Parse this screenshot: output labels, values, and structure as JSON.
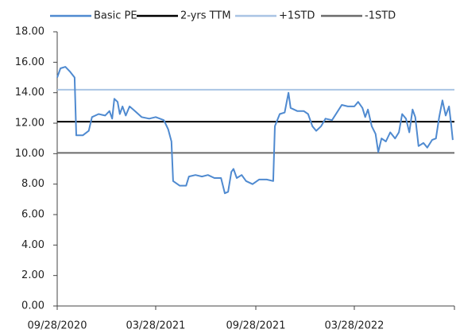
{
  "chart_data": {
    "type": "line",
    "legend": "top",
    "ylim": [
      0,
      18
    ],
    "yticks": [
      {
        "value": 0,
        "label": "0.00"
      },
      {
        "value": 2,
        "label": "2.00"
      },
      {
        "value": 4,
        "label": "4.00"
      },
      {
        "value": 6,
        "label": "6.00"
      },
      {
        "value": 8,
        "label": "8.00"
      },
      {
        "value": 10,
        "label": "10.00"
      },
      {
        "value": 12,
        "label": "12.00"
      },
      {
        "value": 14,
        "label": "14.00"
      },
      {
        "value": 16,
        "label": "16.00"
      },
      {
        "value": 18,
        "label": "18.00"
      }
    ],
    "xlim": [
      "09/28/2020",
      "09/28/2022"
    ],
    "xticks": [
      "09/28/2020",
      "03/28/2021",
      "09/28/2021",
      "03/28/2022"
    ],
    "x": [
      "09/28/2020",
      "10/04/2020",
      "10/13/2020",
      "10/21/2020",
      "10/30/2020",
      "11/02/2020",
      "11/14/2020",
      "11/25/2020",
      "12/01/2020",
      "12/13/2020",
      "12/25/2020",
      "01/02/2021",
      "01/07/2021",
      "01/11/2021",
      "01/17/2021",
      "01/21/2021",
      "01/26/2021",
      "02/01/2021",
      "02/08/2021",
      "02/18/2021",
      "03/02/2021",
      "03/16/2021",
      "03/28/2021",
      "04/12/2021",
      "04/20/2021",
      "04/26/2021",
      "04/29/2021",
      "05/11/2021",
      "05/23/2021",
      "05/28/2021",
      "06/09/2021",
      "06/21/2021",
      "07/02/2021",
      "07/14/2021",
      "07/26/2021",
      "08/02/2021",
      "08/08/2021",
      "08/14/2021",
      "08/18/2021",
      "08/24/2021",
      "09/02/2021",
      "09/10/2021",
      "09/22/2021",
      "10/04/2021",
      "10/18/2021",
      "10/30/2021",
      "11/02/2021",
      "11/11/2021",
      "11/20/2021",
      "11/27/2021",
      "12/01/2021",
      "12/13/2021",
      "12/25/2021",
      "01/02/2022",
      "01/10/2022",
      "01/17/2022",
      "01/26/2022",
      "02/03/2022",
      "02/15/2022",
      "02/24/2022",
      "03/05/2022",
      "03/16/2022",
      "03/28/2022",
      "04/04/2022",
      "04/12/2022",
      "04/17/2022",
      "04/22/2022",
      "04/29/2022",
      "05/06/2022",
      "05/11/2022",
      "05/17/2022",
      "05/25/2022",
      "06/02/2022",
      "06/11/2022",
      "06/18/2022",
      "06/24/2022",
      "07/01/2022",
      "07/07/2022",
      "07/13/2022",
      "07/18/2022",
      "07/24/2022",
      "08/02/2022",
      "08/09/2022",
      "08/18/2022",
      "08/25/2022",
      "08/31/2022",
      "09/06/2022",
      "09/12/2022",
      "09/18/2022",
      "09/22/2022",
      "09/25/2022"
    ],
    "series": [
      {
        "name": "Basic PE",
        "color": "#4f8ad0",
        "values": [
          15.0,
          15.6,
          15.7,
          15.4,
          15.0,
          11.2,
          11.2,
          11.5,
          12.4,
          12.6,
          12.5,
          12.8,
          12.3,
          13.6,
          13.4,
          12.6,
          13.1,
          12.5,
          13.1,
          12.8,
          12.4,
          12.3,
          12.4,
          12.2,
          11.6,
          10.8,
          8.2,
          7.9,
          7.9,
          8.5,
          8.6,
          8.5,
          8.6,
          8.4,
          8.4,
          7.4,
          7.5,
          8.8,
          9.0,
          8.4,
          8.6,
          8.2,
          8.0,
          8.3,
          8.3,
          8.2,
          11.8,
          12.6,
          12.7,
          14.0,
          13.0,
          12.8,
          12.8,
          12.6,
          11.8,
          11.5,
          11.8,
          12.3,
          12.2,
          12.7,
          13.2,
          13.1,
          13.1,
          13.4,
          13.0,
          12.4,
          12.9,
          11.8,
          11.3,
          10.1,
          11.0,
          10.8,
          11.4,
          11.0,
          11.4,
          12.6,
          12.3,
          11.4,
          12.9,
          12.4,
          10.5,
          10.7,
          10.4,
          10.9,
          11.0,
          12.4,
          13.5,
          12.5,
          13.1,
          11.9,
          10.9
        ]
      },
      {
        "name": "2-yrs TTM",
        "color": "#000000",
        "value": 12.1
      },
      {
        "name": "+1STD",
        "color": "#a9c4e4",
        "value": 14.2
      },
      {
        "name": "-1STD",
        "color": "#6b6b6b",
        "value": 10.05
      }
    ]
  }
}
